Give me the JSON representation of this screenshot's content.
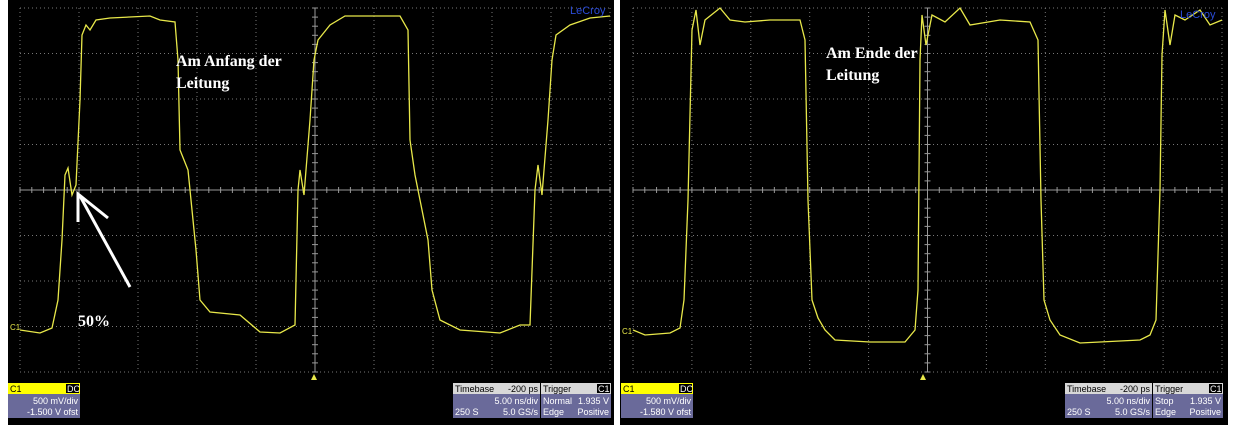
{
  "panels": [
    {
      "brand": "LeCroy",
      "trace_label": "C1",
      "annotation": [
        "Am Anfang der",
        "Leitung"
      ],
      "marker": "50%",
      "channel": {
        "name": "C1",
        "coupling": "DC",
        "scale": "500 mV/div",
        "offset": "-1.500 V ofst"
      },
      "timebase": {
        "title": "Timebase",
        "delay": "-200 ps",
        "scale": "5.00 ns/div",
        "samples": "250 S",
        "rate": "5.0 GS/s"
      },
      "trigger": {
        "title": "Trigger",
        "source": "C1",
        "mode": "Normal",
        "level": "1.935 V",
        "type": "Edge",
        "slope": "Positive"
      }
    },
    {
      "brand": "LeCroy",
      "trace_label": "C1",
      "annotation": [
        "Am Ende der",
        "Leitung"
      ],
      "channel": {
        "name": "C1",
        "coupling": "DC",
        "scale": "500 mV/div",
        "offset": "-1.580 V ofst"
      },
      "timebase": {
        "title": "Timebase",
        "delay": "-200 ps",
        "scale": "5.00 ns/div",
        "samples": "250 S",
        "rate": "5.0 GS/s"
      },
      "trigger": {
        "title": "Trigger",
        "source": "C1",
        "mode": "Stop",
        "level": "1.935 V",
        "type": "Edge",
        "slope": "Positive"
      }
    }
  ]
}
